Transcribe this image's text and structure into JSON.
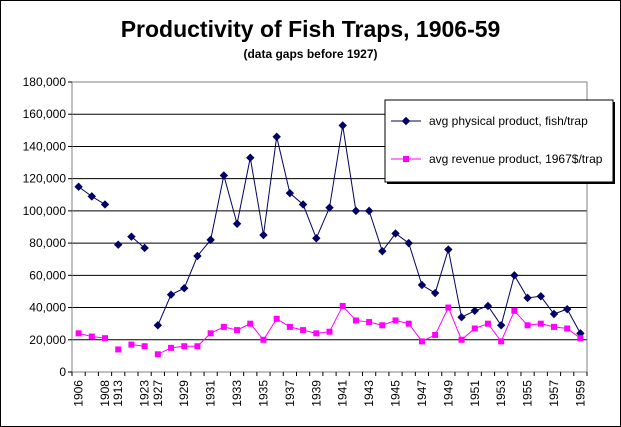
{
  "chart_data": {
    "type": "line",
    "title": "Productivity of Fish Traps, 1906-59",
    "subtitle": "(data gaps before 1927)",
    "xlabel": "",
    "ylabel": "",
    "ylim": [
      0,
      180000
    ],
    "y_ticks": [
      "0",
      "20,000",
      "40,000",
      "60,000",
      "80,000",
      "100,000",
      "120,000",
      "140,000",
      "160,000",
      "180,000"
    ],
    "grid": "horizontal",
    "legend_placement": "top-right",
    "categories": [
      "1906",
      "1907",
      "1908",
      "1913",
      "1922",
      "1923",
      "1927",
      "1928",
      "1929",
      "1930",
      "1931",
      "1932",
      "1933",
      "1934",
      "1935",
      "1936",
      "1937",
      "1938",
      "1939",
      "1940",
      "1941",
      "1942",
      "1943",
      "1944",
      "1945",
      "1946",
      "1947",
      "1948",
      "1949",
      "1950",
      "1951",
      "1952",
      "1953",
      "1954",
      "1955",
      "1956",
      "1957",
      "1958",
      "1959"
    ],
    "x_tick_labels": [
      "1906",
      "1908",
      "1913",
      "1923",
      "1927",
      "1929",
      "1931",
      "1933",
      "1935",
      "1937",
      "1939",
      "1941",
      "1943",
      "1945",
      "1947",
      "1949",
      "1951",
      "1953",
      "1955",
      "1957",
      "1959"
    ],
    "line_breaks_before": [
      "1913",
      "1922",
      "1927"
    ],
    "series": [
      {
        "name": "avg physical product, fish/trap",
        "color": "#000066",
        "marker": "diamond",
        "values": [
          115000,
          109000,
          104000,
          79000,
          84000,
          77000,
          29000,
          48000,
          52000,
          72000,
          82000,
          122000,
          92000,
          133000,
          85000,
          146000,
          111000,
          104000,
          83000,
          102000,
          153000,
          100000,
          100000,
          75000,
          86000,
          80000,
          54000,
          49000,
          76000,
          34000,
          38000,
          41000,
          29000,
          60000,
          46000,
          47000,
          36000,
          39000,
          24000
        ]
      },
      {
        "name": "avg revenue product, 1967$/trap",
        "color": "#ff00ff",
        "marker": "square",
        "values": [
          24000,
          22000,
          21000,
          14000,
          17000,
          16000,
          11000,
          15000,
          16000,
          16000,
          24000,
          28000,
          26000,
          30000,
          20000,
          33000,
          28000,
          26000,
          24000,
          25000,
          41000,
          32000,
          31000,
          29000,
          32000,
          30000,
          19000,
          23000,
          40000,
          20000,
          27000,
          30000,
          19000,
          38000,
          29000,
          30000,
          28000,
          27000,
          21000
        ]
      }
    ]
  }
}
